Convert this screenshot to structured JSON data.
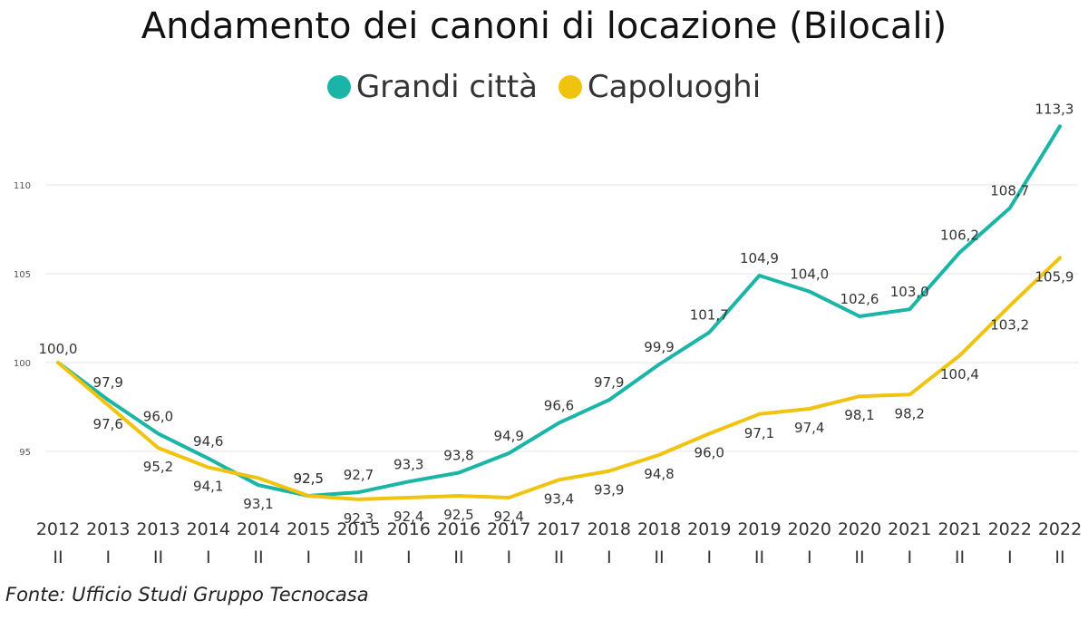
{
  "chart_data": {
    "type": "line",
    "title": "Andamento dei canoni di locazione (Bilocali)",
    "xlabel": "",
    "ylabel": "",
    "ylim": [
      91,
      115
    ],
    "yticks": [
      95,
      100,
      105,
      110
    ],
    "categories": [
      {
        "year": "2012",
        "sem": "II"
      },
      {
        "year": "2013",
        "sem": "I"
      },
      {
        "year": "2013",
        "sem": "II"
      },
      {
        "year": "2014",
        "sem": "I"
      },
      {
        "year": "2014",
        "sem": "II"
      },
      {
        "year": "2015",
        "sem": "I"
      },
      {
        "year": "2015",
        "sem": "II"
      },
      {
        "year": "2016",
        "sem": "I"
      },
      {
        "year": "2016",
        "sem": "II"
      },
      {
        "year": "2017",
        "sem": "I"
      },
      {
        "year": "2017",
        "sem": "II"
      },
      {
        "year": "2018",
        "sem": "I"
      },
      {
        "year": "2018",
        "sem": "II"
      },
      {
        "year": "2019",
        "sem": "I"
      },
      {
        "year": "2019",
        "sem": "II"
      },
      {
        "year": "2020",
        "sem": "I"
      },
      {
        "year": "2020",
        "sem": "II"
      },
      {
        "year": "2021",
        "sem": "I"
      },
      {
        "year": "2021",
        "sem": "II"
      },
      {
        "year": "2022",
        "sem": "I"
      },
      {
        "year": "2022",
        "sem": "II"
      }
    ],
    "series": [
      {
        "name": "Grandi città",
        "color": "#1ab5a6",
        "values": [
          100.0,
          97.9,
          96.0,
          94.6,
          93.1,
          92.5,
          92.7,
          93.3,
          93.8,
          94.9,
          96.6,
          97.9,
          99.9,
          101.7,
          104.9,
          104.0,
          102.6,
          103.0,
          106.2,
          108.7,
          113.3
        ],
        "labels": [
          "100,0",
          "97,9",
          "96,0",
          "94,6",
          "93,1",
          "92,5",
          "92,7",
          "93,3",
          "93,8",
          "94,9",
          "96,6",
          "97,9",
          "99,9",
          "101,7",
          "104,9",
          "104,0",
          "102,6",
          "103,0",
          "106,2",
          "108,7",
          "113,3"
        ]
      },
      {
        "name": "Capoluoghi",
        "color": "#f0c30f",
        "values": [
          100.0,
          97.6,
          95.2,
          94.1,
          93.5,
          92.5,
          92.3,
          92.4,
          92.5,
          92.4,
          93.4,
          93.9,
          94.8,
          96.0,
          97.1,
          97.4,
          98.1,
          98.2,
          100.4,
          103.2,
          105.9
        ],
        "labels": [
          "",
          "97,6",
          "95,2",
          "94,1",
          "",
          "92,5",
          "92,3",
          "92,4",
          "92,5",
          "92,4",
          "93,4",
          "93,9",
          "94,8",
          "96,0",
          "97,1",
          "97,4",
          "98,1",
          "98,2",
          "100,4",
          "103,2",
          "105,9"
        ]
      }
    ]
  },
  "source": "Fonte: Ufficio Studi Gruppo Tecnocasa"
}
